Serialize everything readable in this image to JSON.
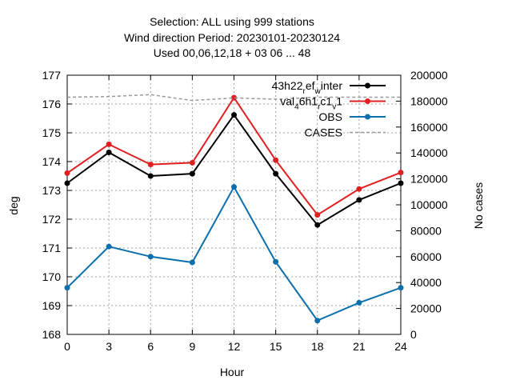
{
  "chart_data": {
    "type": "line",
    "title_lines": [
      "Selection: ALL using    999 stations",
      "Wind direction   Period: 20230101-20230124",
      "Used  00,06,12,18  + 03 06 ... 48"
    ],
    "xlabel": "Hour",
    "ylabel": "deg",
    "y2label": "No cases",
    "x": [
      0,
      3,
      6,
      9,
      12,
      15,
      18,
      21,
      24
    ],
    "xlim": [
      0,
      24
    ],
    "ylim": [
      168,
      177
    ],
    "y2lim": [
      0,
      200000
    ],
    "xticks": [
      "0",
      "3",
      "6",
      "9",
      "12",
      "15",
      "18",
      "21",
      "24"
    ],
    "yticks": [
      "168",
      "169",
      "170",
      "171",
      "172",
      "173",
      "174",
      "175",
      "176",
      "177"
    ],
    "y2ticks": [
      "0",
      "20000",
      "40000",
      "60000",
      "80000",
      "100000",
      "120000",
      "140000",
      "160000",
      "180000",
      "200000"
    ],
    "grid": true,
    "legend_position": "top-right",
    "series": [
      {
        "name": "43h22_ref_winter",
        "legend": {
          "base": "43h22",
          "parts": [
            [
              "sub",
              "r"
            ],
            [
              "base",
              "ef"
            ],
            [
              "sub",
              "w"
            ],
            [
              "base",
              "inter"
            ]
          ]
        },
        "color": "#000000",
        "axis": "y",
        "values": [
          173.25,
          174.32,
          173.5,
          173.58,
          175.62,
          173.58,
          171.8,
          172.67,
          173.25
        ]
      },
      {
        "name": "val_46h1_rc1_v1",
        "legend": {
          "base": "val",
          "parts": [
            [
              "sub",
              "4"
            ],
            [
              "base",
              "6h1"
            ],
            [
              "sub",
              "r"
            ],
            [
              "base",
              "c1"
            ],
            [
              "sub",
              "v"
            ],
            [
              "base",
              "1"
            ]
          ]
        },
        "color": "#e02020",
        "axis": "y",
        "values": [
          173.6,
          174.6,
          173.9,
          173.96,
          176.22,
          174.05,
          172.15,
          173.05,
          173.62
        ]
      },
      {
        "name": "OBS",
        "legend": {
          "base": "OBS",
          "parts": []
        },
        "color": "#0a6fad",
        "axis": "y",
        "values": [
          169.62,
          171.05,
          170.7,
          170.5,
          173.12,
          170.52,
          168.48,
          169.1,
          169.62
        ]
      },
      {
        "name": "CASES",
        "legend": {
          "base": "CASES",
          "parts": []
        },
        "color": "#999999",
        "dashed": true,
        "axis": "y2",
        "values": [
          183000,
          183500,
          185000,
          180500,
          182500,
          181500,
          183000,
          183000,
          183000
        ]
      }
    ]
  }
}
